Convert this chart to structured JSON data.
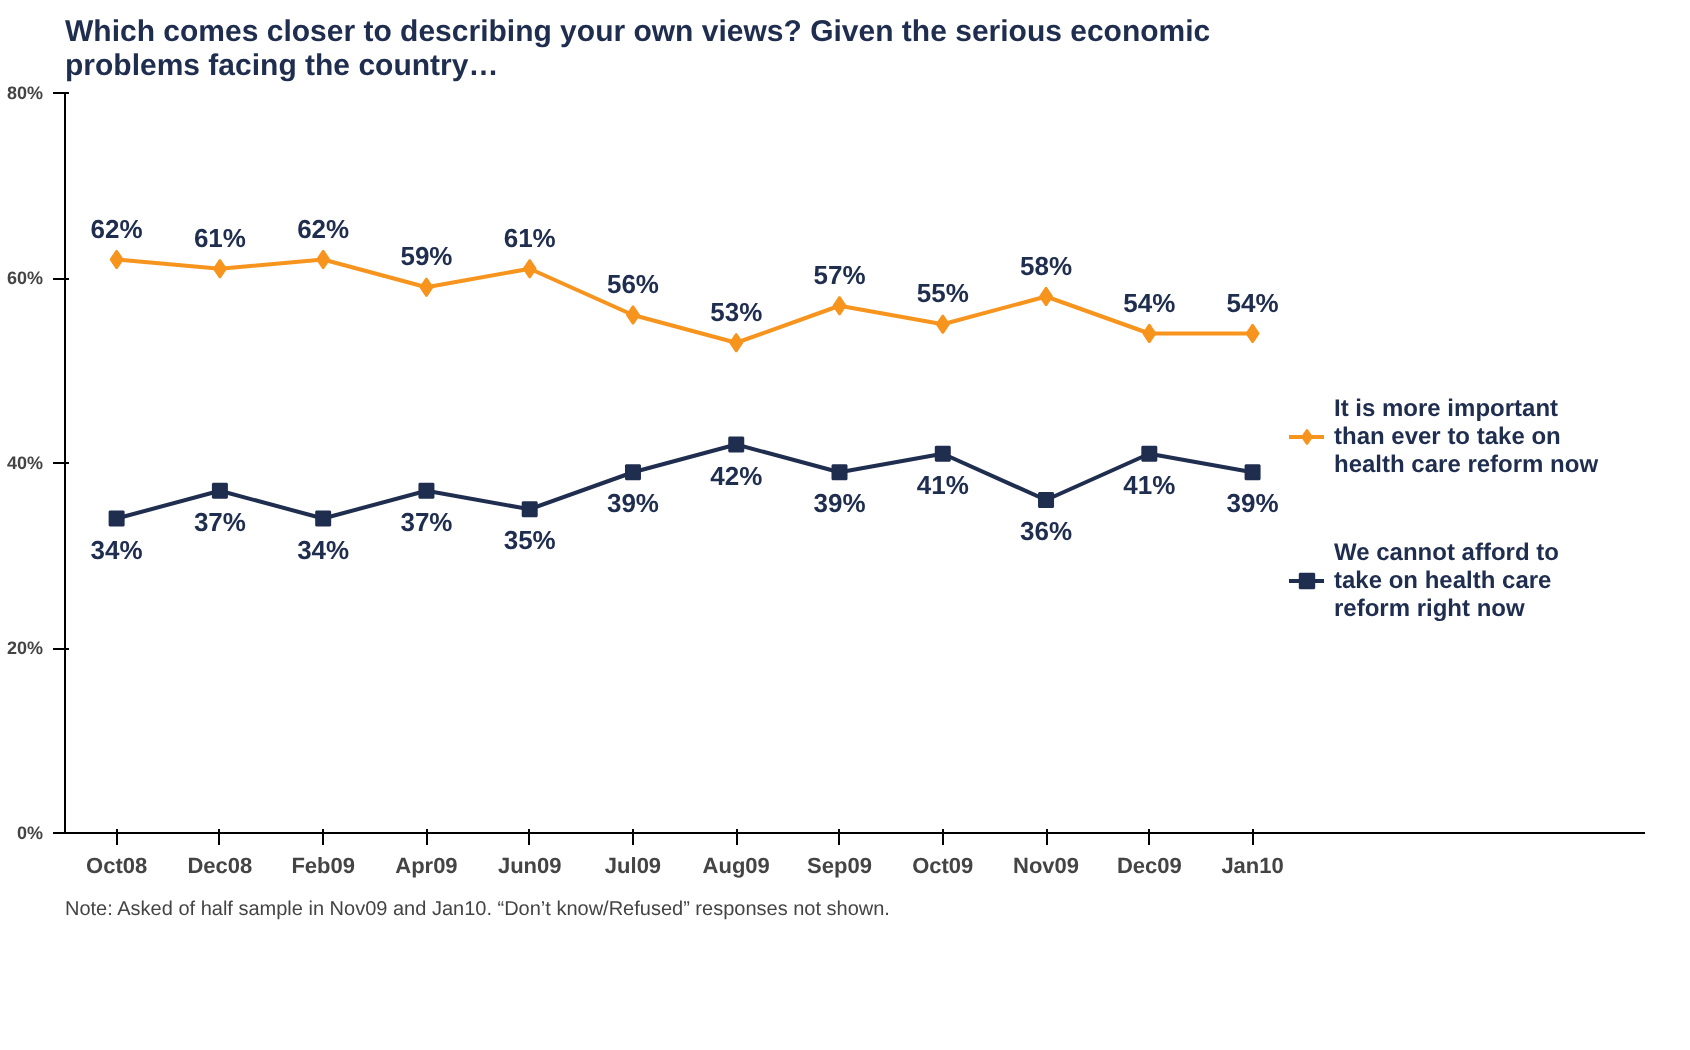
{
  "chart_data": {
    "type": "line",
    "title": "Which comes closer to describing your own views? Given the serious economic problems facing the country…",
    "categories": [
      "Oct08",
      "Dec08",
      "Feb09",
      "Apr09",
      "Jun09",
      "Jul09",
      "Aug09",
      "Sep09",
      "Oct09",
      "Nov09",
      "Dec09",
      "Jan10"
    ],
    "series": [
      {
        "name": "It is more important than ever to take on health care reform now",
        "color": "#f7941d",
        "marker": "diamond",
        "values": [
          62,
          61,
          62,
          59,
          61,
          56,
          53,
          57,
          55,
          58,
          54,
          54
        ],
        "value_labels": [
          "62%",
          "61%",
          "62%",
          "59%",
          "61%",
          "56%",
          "53%",
          "57%",
          "55%",
          "58%",
          "54%",
          "54%"
        ]
      },
      {
        "name": "We cannot afford to take on health care reform right now",
        "color": "#1f2d4f",
        "marker": "square",
        "values": [
          34,
          37,
          34,
          37,
          35,
          39,
          42,
          39,
          41,
          36,
          41,
          39
        ],
        "value_labels": [
          "34%",
          "37%",
          "34%",
          "37%",
          "35%",
          "39%",
          "42%",
          "39%",
          "41%",
          "36%",
          "41%",
          "39%"
        ]
      }
    ],
    "ylim": [
      0,
      80
    ],
    "yticks": [
      {
        "value": 0,
        "label": "0%"
      },
      {
        "value": 20,
        "label": "20%"
      },
      {
        "value": 40,
        "label": "40%"
      },
      {
        "value": 60,
        "label": "60%"
      },
      {
        "value": 80,
        "label": "80%"
      }
    ],
    "grid": false,
    "legend": "right",
    "line_style": "solid",
    "annotations": [
      "Note: Asked of half sample in Nov09 and Jan10.  “Don’t know/Refused” responses not shown."
    ]
  }
}
